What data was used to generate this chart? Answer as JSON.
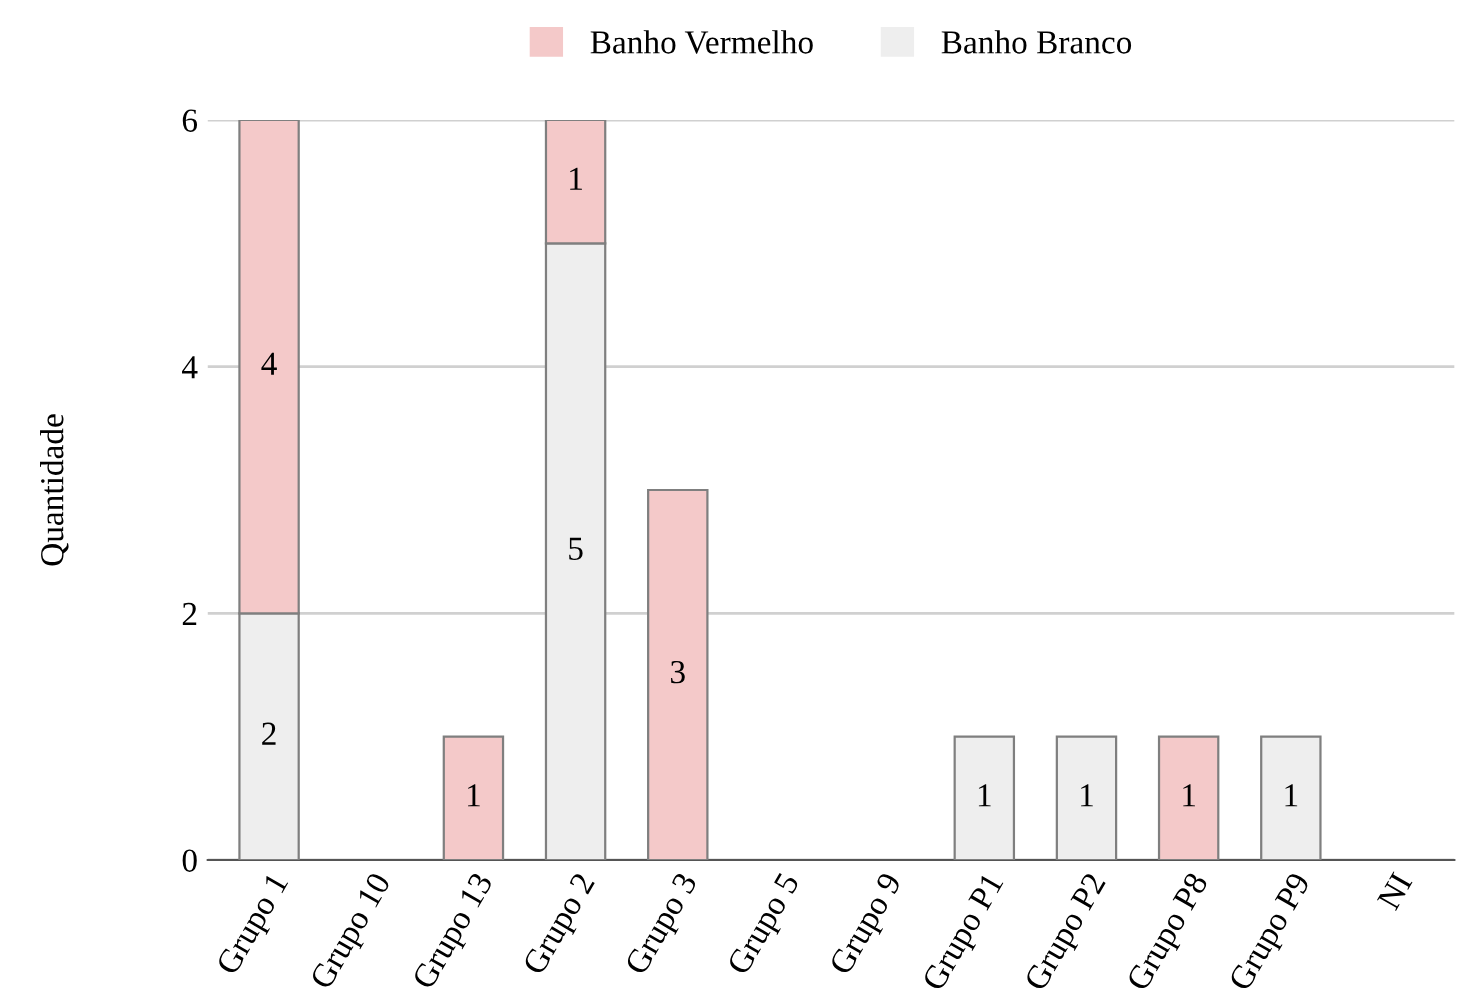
{
  "chart_data": {
    "type": "bar",
    "stacked": true,
    "ylabel": "Quantidade",
    "categories": [
      "Grupo 1",
      "Grupo 10",
      "Grupo 13",
      "Grupo 2",
      "Grupo 3",
      "Grupo 5",
      "Grupo 9",
      "Grupo P1",
      "Grupo P2",
      "Grupo P8",
      "Grupo P9",
      "NI"
    ],
    "series": [
      {
        "name": "Banho Branco",
        "color": "#eeeeee",
        "values": [
          2,
          0,
          0,
          5,
          0,
          0,
          0,
          1,
          1,
          0,
          1,
          0
        ],
        "value_labels": [
          "2",
          null,
          null,
          "5",
          null,
          null,
          null,
          "1",
          "1",
          null,
          "1",
          null
        ]
      },
      {
        "name": "Banho Vermelho",
        "color": "#f4c9c9",
        "values": [
          4,
          0,
          1,
          1,
          3,
          0,
          0,
          0,
          0,
          1,
          0,
          0
        ],
        "value_labels": [
          "4",
          null,
          "1",
          "1",
          "3",
          null,
          null,
          null,
          null,
          "1",
          null,
          null
        ]
      }
    ],
    "ylim": [
      0,
      6
    ],
    "yticks": [
      0,
      2,
      4,
      6
    ],
    "grid": "y",
    "legend": "top"
  }
}
